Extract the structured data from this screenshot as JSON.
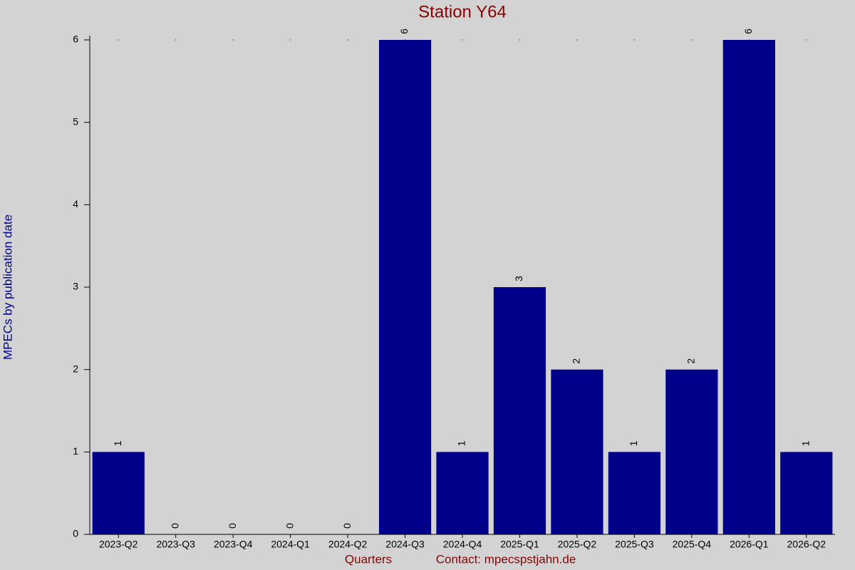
{
  "chart_data": {
    "type": "bar",
    "title": "Station Y64",
    "x_label": "Quarters",
    "contact": "Contact: mpecspstjahn.de",
    "y_label": "MPECs by publication date",
    "categories": [
      "2023-Q2",
      "2023-Q3",
      "2023-Q4",
      "2024-Q1",
      "2024-Q2",
      "2024-Q3",
      "2024-Q4",
      "2025-Q1",
      "2025-Q2",
      "2025-Q3",
      "2025-Q4",
      "2026-Q1",
      "2026-Q2"
    ],
    "values": [
      1,
      0,
      0,
      0,
      0,
      6,
      1,
      3,
      2,
      1,
      2,
      6,
      1
    ],
    "color": "#00008b",
    "ylim": [
      0,
      6
    ],
    "yticks": [
      0,
      1,
      2,
      3,
      4,
      5,
      6
    ],
    "grid": false
  }
}
